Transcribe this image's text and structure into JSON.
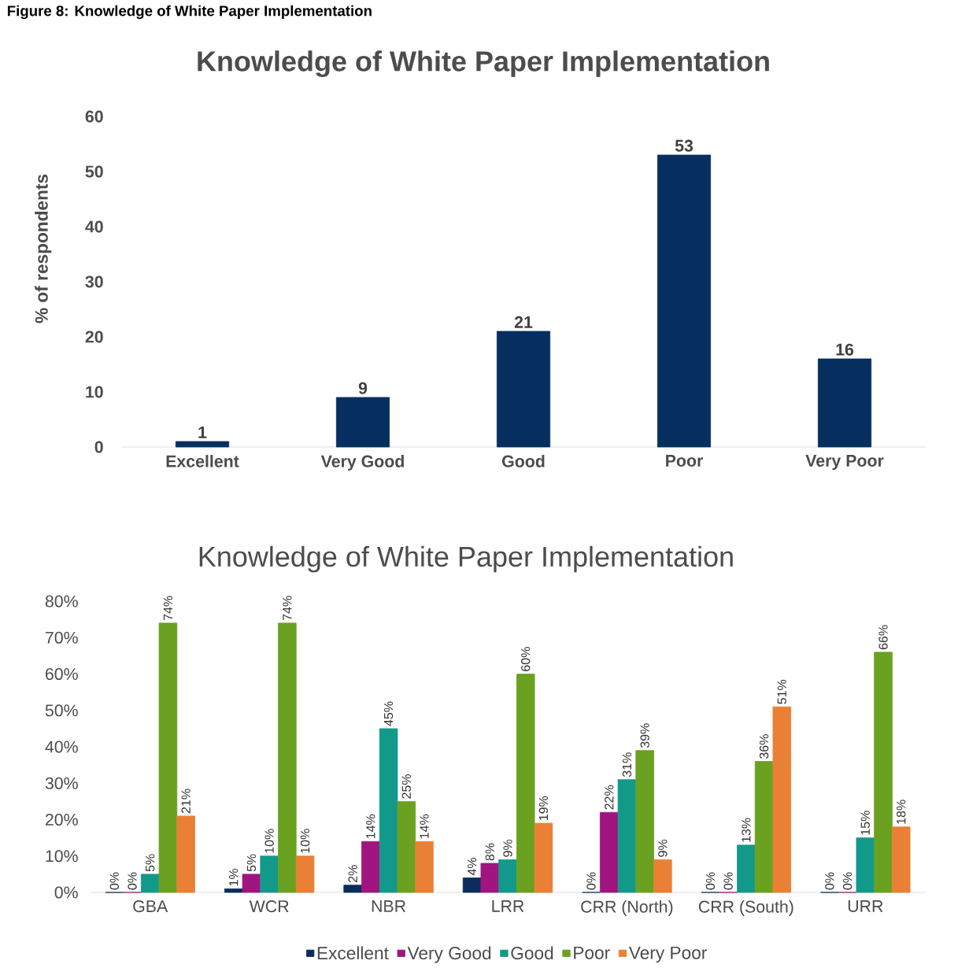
{
  "chart_data": [
    {
      "type": "bar",
      "title": "Knowledge of White Paper Implementation",
      "ylabel": "% of respondents",
      "annotations": [
        "Figure 8: Knowledge of White Paper Implementation"
      ],
      "categories": [
        "Excellent",
        "Very  Good",
        "Good",
        "Poor",
        "Very Poor"
      ],
      "values": [
        1,
        9,
        21,
        53,
        16
      ],
      "color": "#062f5f",
      "ylim": [
        0,
        60
      ],
      "yticks": [
        0,
        10,
        20,
        30,
        40,
        50,
        60
      ],
      "data_labels": true
    },
    {
      "type": "bar",
      "title": "Knowledge of White Paper Implementation",
      "legend": "bottom",
      "categories": [
        "GBA",
        "WCR",
        "NBR",
        "LRR",
        "CRR (North)",
        "CRR (South)",
        "URR"
      ],
      "series": [
        {
          "name": "Excellent",
          "color": "#0b2d5b",
          "values": [
            0,
            1,
            2,
            4,
            0,
            0,
            0
          ],
          "value_labels": [
            "0%",
            "1%",
            "2%",
            "4%",
            "0%",
            "0%",
            "0%"
          ]
        },
        {
          "name": "Very  Good",
          "color": "#a0157f",
          "values": [
            0,
            5,
            14,
            8,
            22,
            0,
            0
          ],
          "value_labels": [
            "0%",
            "5%",
            "14%",
            "8%",
            "22%",
            "0%",
            "0%"
          ]
        },
        {
          "name": "Good",
          "color": "#13998a",
          "values": [
            5,
            10,
            45,
            9,
            31,
            13,
            15
          ],
          "value_labels": [
            "5%",
            "10%",
            "45%",
            "9%",
            "31%",
            "13%",
            "15%"
          ]
        },
        {
          "name": "Poor",
          "color": "#6aa121",
          "values": [
            74,
            74,
            25,
            60,
            39,
            36,
            66
          ],
          "value_labels": [
            "74%",
            "74%",
            "25%",
            "60%",
            "39%",
            "36%",
            "66%"
          ]
        },
        {
          "name": "Very Poor",
          "color": "#ea8035",
          "values": [
            21,
            10,
            14,
            19,
            9,
            51,
            18
          ],
          "value_labels": [
            "21%",
            "10%",
            "14%",
            "19%",
            "9%",
            "51%",
            "18%"
          ]
        }
      ],
      "ylim": [
        0,
        80
      ],
      "yticks": [
        {
          "value": 0,
          "label": "0%"
        },
        {
          "value": 10,
          "label": "10%"
        },
        {
          "value": 20,
          "label": "20%"
        },
        {
          "value": 30,
          "label": "30%"
        },
        {
          "value": 40,
          "label": "40%"
        },
        {
          "value": 50,
          "label": "50%"
        },
        {
          "value": 60,
          "label": "60%"
        },
        {
          "value": 70,
          "label": "70%"
        },
        {
          "value": 80,
          "label": "80%"
        }
      ]
    }
  ]
}
